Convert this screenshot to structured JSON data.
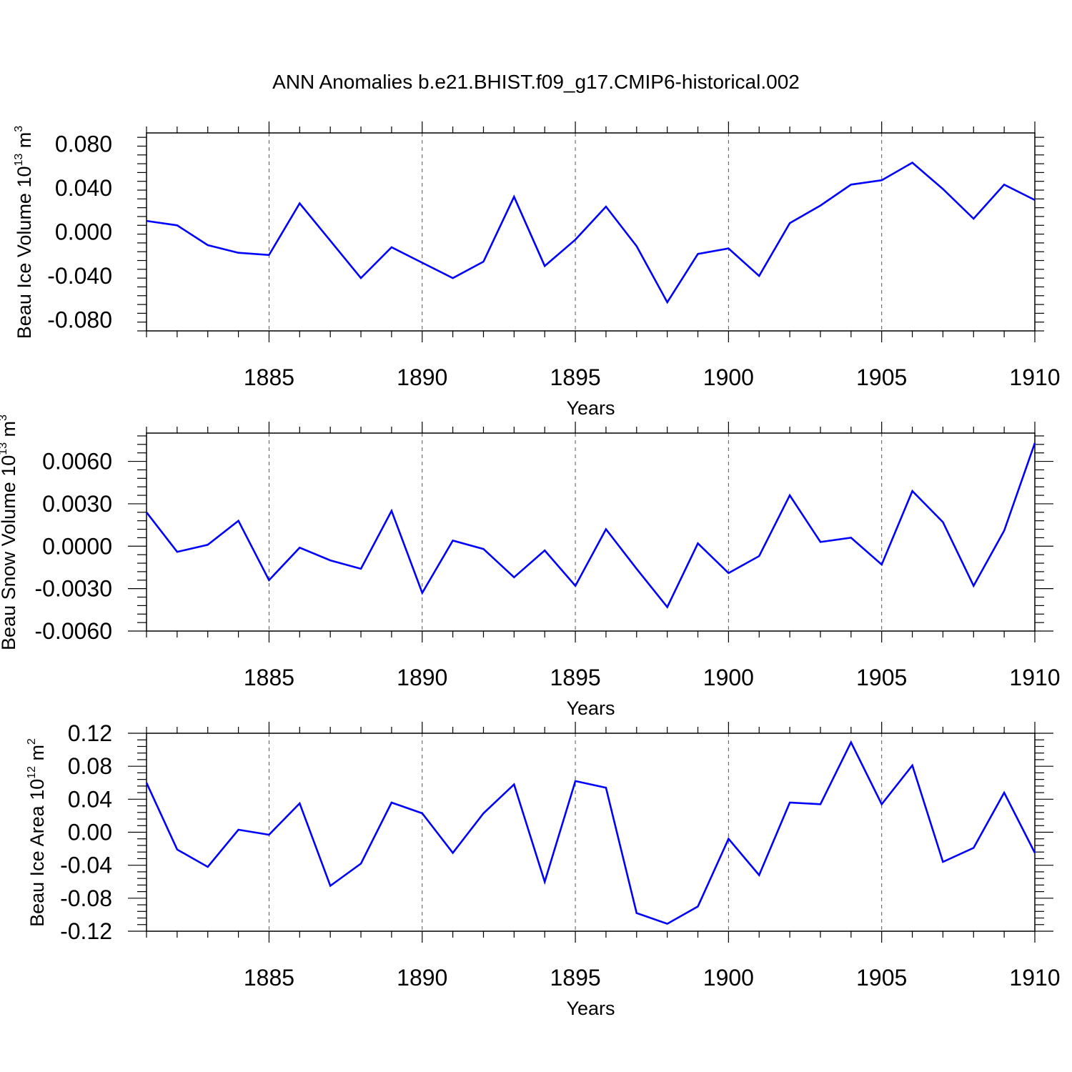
{
  "title": "ANN Anomalies b.e21.BHIST.f09_g17.CMIP6-historical.002",
  "colors": {
    "line": "#0000ff",
    "axis": "#000000",
    "grid": "#555555"
  },
  "chart_data": [
    {
      "type": "line",
      "ylabel_main": "Beau Ice Volume 10",
      "ylabel_exp": "13",
      "ylabel_unit": " m",
      "ylabel_unit_exp": "3",
      "xlabel": "Years",
      "xlim": [
        1881,
        1910
      ],
      "ylim": [
        -0.09,
        0.09
      ],
      "x_ticks": [
        1885,
        1890,
        1895,
        1900,
        1905,
        1910
      ],
      "x_tick_labels": [
        "1885",
        "1890",
        "1895",
        "1900",
        "1905",
        "1910"
      ],
      "y_ticks": [
        -0.08,
        -0.04,
        0.0,
        0.04,
        0.08
      ],
      "y_tick_labels": [
        "-0.080",
        "-0.040",
        "0.000",
        "0.040",
        "0.080"
      ],
      "x": [
        1881,
        1882,
        1883,
        1884,
        1885,
        1886,
        1887,
        1888,
        1889,
        1890,
        1891,
        1892,
        1893,
        1894,
        1895,
        1896,
        1897,
        1898,
        1899,
        1900,
        1901,
        1902,
        1903,
        1904,
        1905,
        1906,
        1907,
        1908,
        1909,
        1910
      ],
      "values": [
        0.01,
        0.006,
        -0.012,
        -0.019,
        -0.021,
        0.026,
        -0.008,
        -0.042,
        -0.014,
        -0.028,
        -0.042,
        -0.027,
        0.032,
        -0.031,
        -0.007,
        0.023,
        -0.013,
        -0.064,
        -0.02,
        -0.015,
        -0.04,
        0.008,
        0.024,
        0.043,
        0.047,
        0.063,
        0.039,
        0.012,
        0.043,
        0.029
      ]
    },
    {
      "type": "line",
      "ylabel_main": "Beau Snow Volume 10",
      "ylabel_exp": "13",
      "ylabel_unit": " m",
      "ylabel_unit_exp": "3",
      "xlabel": "Years",
      "xlim": [
        1881,
        1910
      ],
      "ylim": [
        -0.006,
        0.008
      ],
      "x_ticks": [
        1885,
        1890,
        1895,
        1900,
        1905,
        1910
      ],
      "x_tick_labels": [
        "1885",
        "1890",
        "1895",
        "1900",
        "1905",
        "1910"
      ],
      "y_ticks": [
        -0.006,
        -0.003,
        0.0,
        0.003,
        0.006
      ],
      "y_tick_labels": [
        "-0.0060",
        "-0.0030",
        "0.0000",
        "0.0030",
        "0.0060"
      ],
      "x": [
        1881,
        1882,
        1883,
        1884,
        1885,
        1886,
        1887,
        1888,
        1889,
        1890,
        1891,
        1892,
        1893,
        1894,
        1895,
        1896,
        1897,
        1898,
        1899,
        1900,
        1901,
        1902,
        1903,
        1904,
        1905,
        1906,
        1907,
        1908,
        1909,
        1910
      ],
      "values": [
        0.0024,
        -0.0004,
        0.0001,
        0.0018,
        -0.0024,
        -0.0001,
        -0.001,
        -0.0016,
        0.0025,
        -0.0033,
        0.0004,
        -0.0002,
        -0.0022,
        -0.0003,
        -0.0028,
        0.0012,
        -0.0016,
        -0.0043,
        0.0002,
        -0.0019,
        -0.0007,
        0.0036,
        0.0003,
        0.0006,
        -0.0013,
        0.0039,
        0.0017,
        -0.0028,
        0.0011,
        0.0073
      ]
    },
    {
      "type": "line",
      "ylabel_main": "Beau Ice Area 10",
      "ylabel_exp": "12",
      "ylabel_unit": " m",
      "ylabel_unit_exp": "2",
      "xlabel": "Years",
      "xlim": [
        1881,
        1910
      ],
      "ylim": [
        -0.12,
        0.12
      ],
      "x_ticks": [
        1885,
        1890,
        1895,
        1900,
        1905,
        1910
      ],
      "x_tick_labels": [
        "1885",
        "1890",
        "1895",
        "1900",
        "1905",
        "1910"
      ],
      "y_ticks": [
        -0.12,
        -0.08,
        -0.04,
        0.0,
        0.04,
        0.08,
        0.12
      ],
      "y_tick_labels": [
        "-0.12",
        "-0.08",
        "-0.04",
        "0.00",
        "0.04",
        "0.08",
        "0.12"
      ],
      "x": [
        1881,
        1882,
        1883,
        1884,
        1885,
        1886,
        1887,
        1888,
        1889,
        1890,
        1891,
        1892,
        1893,
        1894,
        1895,
        1896,
        1897,
        1898,
        1899,
        1900,
        1901,
        1902,
        1903,
        1904,
        1905,
        1906,
        1907,
        1908,
        1909,
        1910
      ],
      "values": [
        0.06,
        -0.021,
        -0.042,
        0.003,
        -0.003,
        0.035,
        -0.065,
        -0.038,
        0.036,
        0.023,
        -0.025,
        0.023,
        0.058,
        -0.06,
        0.062,
        0.054,
        -0.098,
        -0.111,
        -0.09,
        -0.008,
        -0.052,
        0.036,
        0.034,
        0.109,
        0.034,
        0.081,
        -0.036,
        -0.019,
        0.048,
        -0.025
      ]
    }
  ]
}
